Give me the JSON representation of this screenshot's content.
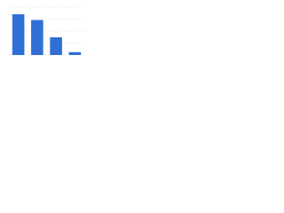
{
  "chart_data": {
    "type": "bar",
    "categories": [
      null,
      null,
      null,
      null
    ],
    "values": [
      85,
      73,
      37,
      6
    ],
    "color": "#2f6fd6",
    "ylim": [
      0,
      100
    ],
    "yticks": [
      0,
      25,
      50,
      75,
      100
    ],
    "grid": true
  }
}
